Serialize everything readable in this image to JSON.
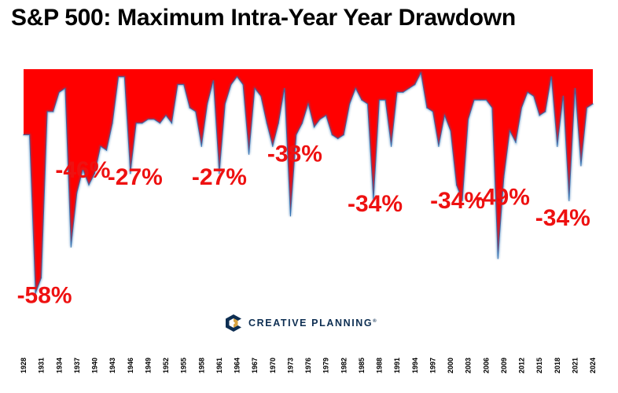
{
  "chart_data": {
    "type": "area",
    "title": "S&P 500: Maximum Intra-Year Year Drawdown",
    "xlabel": "",
    "ylabel": "",
    "ylim": [
      -0.6,
      0
    ],
    "x_tick_labels": [
      "1928",
      "1931",
      "1934",
      "1937",
      "1940",
      "1943",
      "1946",
      "1949",
      "1952",
      "1955",
      "1958",
      "1961",
      "1964",
      "1967",
      "1970",
      "1973",
      "1976",
      "1979",
      "1982",
      "1985",
      "1988",
      "1991",
      "1994",
      "1997",
      "2000",
      "2003",
      "2006",
      "2009",
      "2012",
      "2015",
      "2018",
      "2021",
      "2024"
    ],
    "x": [
      1928,
      1929,
      1930,
      1931,
      1932,
      1933,
      1934,
      1935,
      1936,
      1937,
      1938,
      1939,
      1940,
      1941,
      1942,
      1943,
      1944,
      1945,
      1946,
      1947,
      1948,
      1949,
      1950,
      1951,
      1952,
      1953,
      1954,
      1955,
      1956,
      1957,
      1958,
      1959,
      1960,
      1961,
      1962,
      1963,
      1964,
      1965,
      1966,
      1967,
      1968,
      1969,
      1970,
      1971,
      1972,
      1973,
      1974,
      1975,
      1976,
      1977,
      1978,
      1979,
      1980,
      1981,
      1982,
      1983,
      1984,
      1985,
      1986,
      1987,
      1988,
      1989,
      1990,
      1991,
      1992,
      1993,
      1994,
      1995,
      1996,
      1997,
      1998,
      1999,
      2000,
      2001,
      2002,
      2003,
      2004,
      2005,
      2006,
      2007,
      2008,
      2009,
      2010,
      2011,
      2012,
      2013,
      2014,
      2015,
      2016,
      2017,
      2018,
      2019,
      2020,
      2021,
      2022,
      2023,
      2024
    ],
    "values": [
      -0.17,
      -0.17,
      -0.58,
      -0.54,
      -0.11,
      -0.11,
      -0.06,
      -0.05,
      -0.46,
      -0.32,
      -0.26,
      -0.3,
      -0.27,
      -0.2,
      -0.21,
      -0.14,
      -0.02,
      -0.02,
      -0.27,
      -0.14,
      -0.14,
      -0.13,
      -0.13,
      -0.14,
      -0.12,
      -0.14,
      -0.04,
      -0.04,
      -0.1,
      -0.11,
      -0.2,
      -0.09,
      -0.03,
      -0.27,
      -0.09,
      -0.04,
      -0.02,
      -0.04,
      -0.22,
      -0.05,
      -0.07,
      -0.14,
      -0.2,
      -0.14,
      -0.05,
      -0.38,
      -0.17,
      -0.14,
      -0.09,
      -0.15,
      -0.13,
      -0.12,
      -0.17,
      -0.18,
      -0.17,
      -0.09,
      -0.05,
      -0.08,
      -0.09,
      -0.34,
      -0.08,
      -0.08,
      -0.2,
      -0.06,
      -0.06,
      -0.05,
      -0.04,
      -0.01,
      -0.1,
      -0.11,
      -0.2,
      -0.12,
      -0.16,
      -0.3,
      -0.34,
      -0.13,
      -0.08,
      -0.08,
      -0.08,
      -0.1,
      -0.49,
      -0.28,
      -0.16,
      -0.19,
      -0.1,
      -0.06,
      -0.07,
      -0.12,
      -0.11,
      -0.02,
      -0.2,
      -0.07,
      -0.34,
      -0.05,
      -0.25,
      -0.1,
      -0.09
    ],
    "annotations": [
      {
        "text": "-58%",
        "year": 1931
      },
      {
        "text": "-46%",
        "year": 1938
      },
      {
        "text": "-27%",
        "year": 1946
      },
      {
        "text": "-27%",
        "year": 1961
      },
      {
        "text": "-38%",
        "year": 1974
      },
      {
        "text": "-34%",
        "year": 1987
      },
      {
        "text": "-34%",
        "year": 2002
      },
      {
        "text": "-49%",
        "year": 2009
      },
      {
        "text": "-34%",
        "year": 2020
      }
    ],
    "grid": false,
    "legend": "none",
    "fill_color": "#ff0000",
    "edge_color": "#2f6fb0"
  },
  "logo": {
    "text": "CREATIVE PLANNING",
    "mark": "®",
    "icon": "creative-planning-c-icon",
    "primary_color": "#0d2e52",
    "accent_color": "#d9a441"
  }
}
